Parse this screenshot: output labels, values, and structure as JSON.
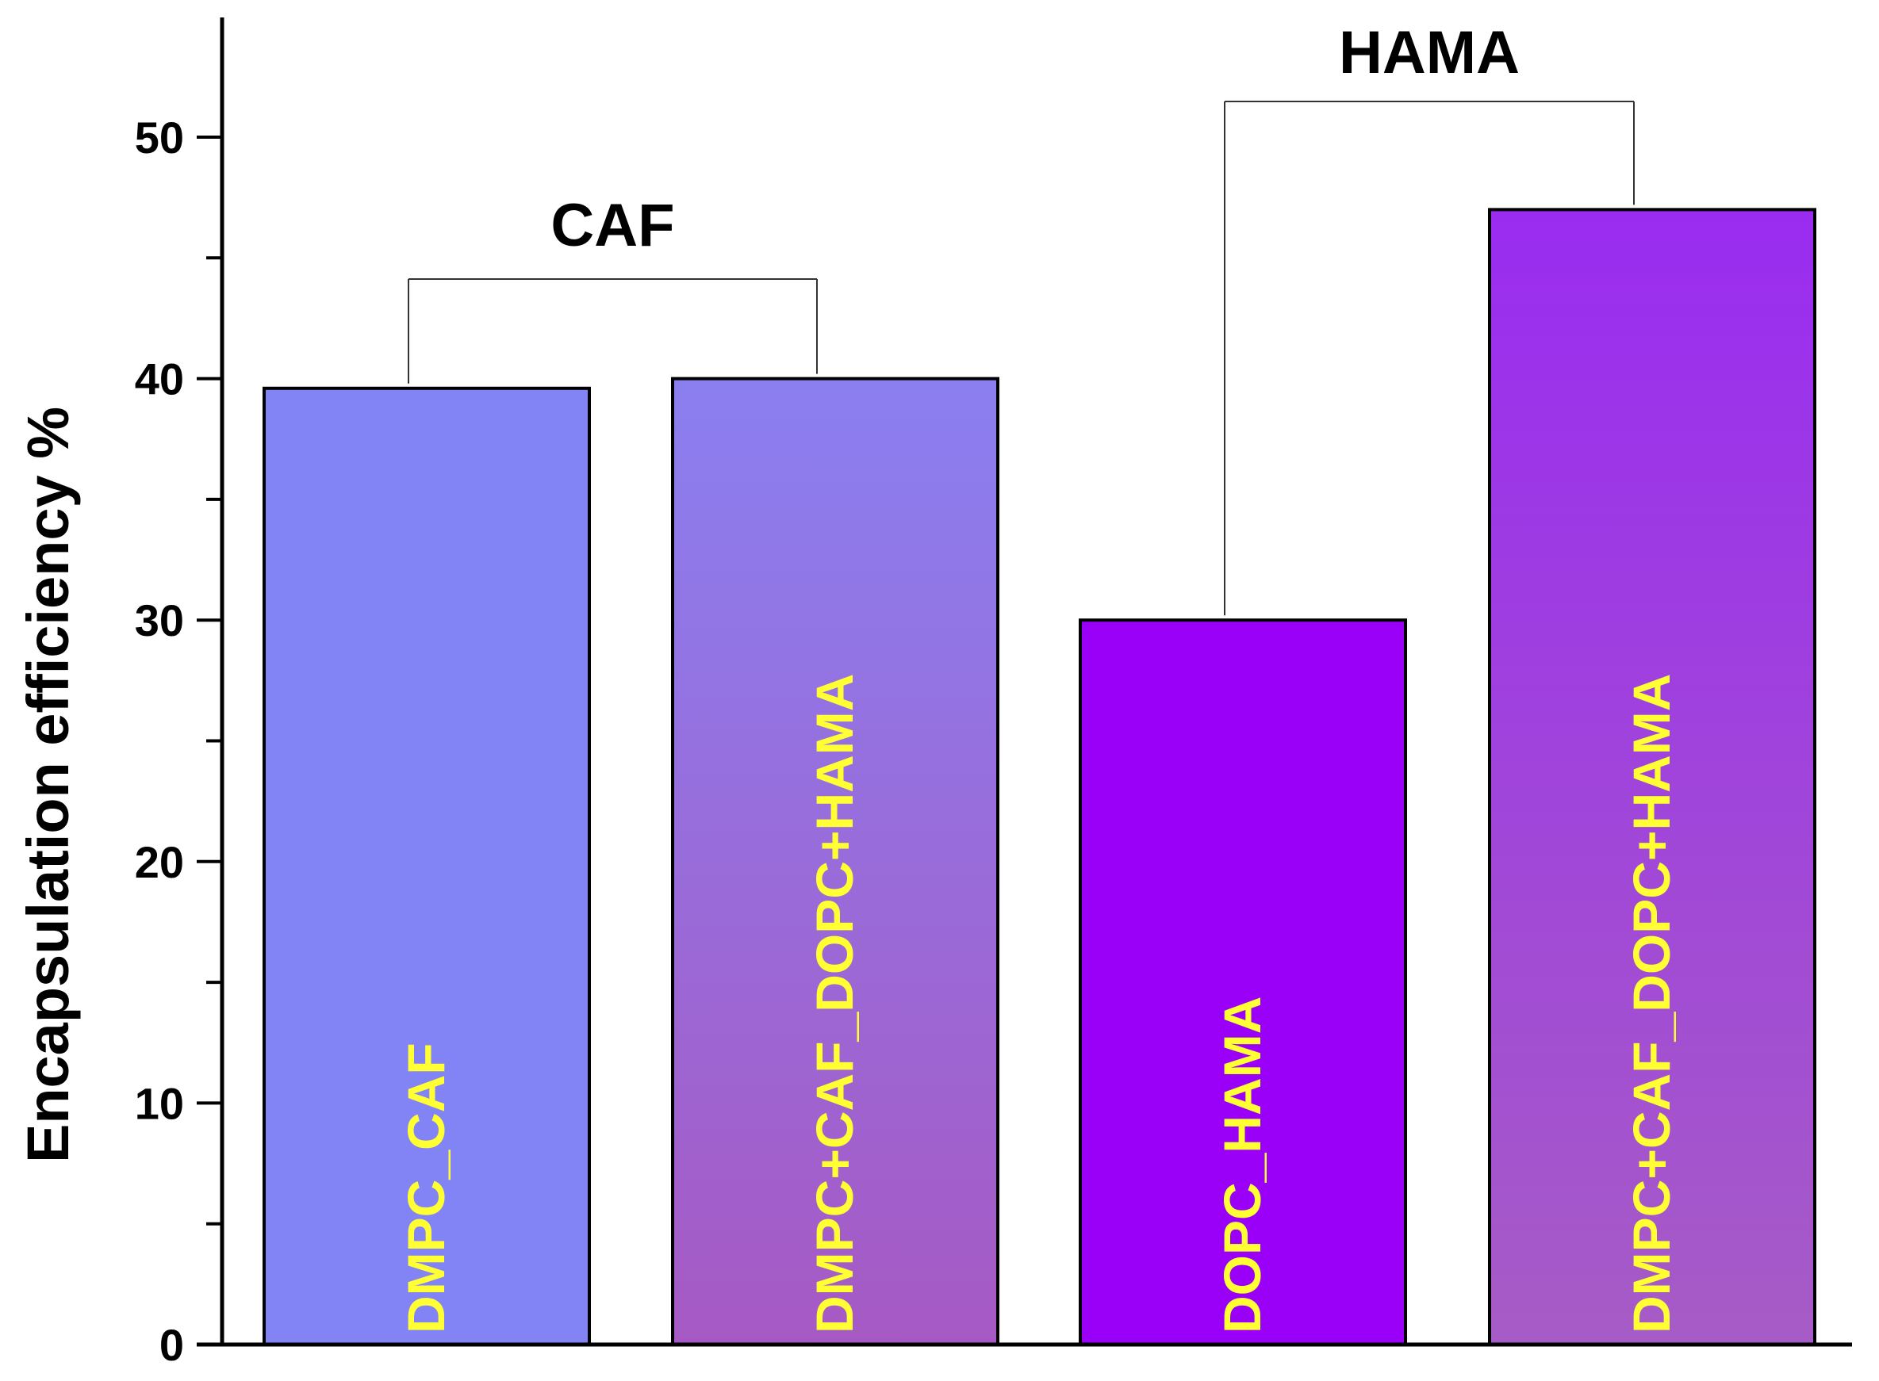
{
  "chart_data": {
    "type": "bar",
    "title": "",
    "xlabel": "",
    "ylabel": "Encapsulation efficiency %",
    "ylim": [
      0,
      55
    ],
    "yticks": [
      0,
      10,
      20,
      30,
      40,
      50
    ],
    "grid": false,
    "legend": "none",
    "categories": [
      "DMPC_CAF",
      "DMPC+CAF_DOPC+HAMA",
      "DOPC_HAMA",
      "DMPC+CAF_DOPC+HAMA"
    ],
    "values": [
      39.6,
      40.0,
      30.0,
      47.0
    ],
    "bar_colors": [
      [
        "#8284f5",
        "#8284f5"
      ],
      [
        "#8b7ff0",
        "#a659c4"
      ],
      [
        "#9a00f8",
        "#9a00f8"
      ],
      [
        "#9a2cf0",
        "#a65cc6"
      ]
    ],
    "bar_label_color": "#ffff33",
    "groups": [
      {
        "label": "CAF",
        "bars": [
          0,
          1
        ]
      },
      {
        "label": "HAMA",
        "bars": [
          2,
          3
        ]
      }
    ]
  }
}
